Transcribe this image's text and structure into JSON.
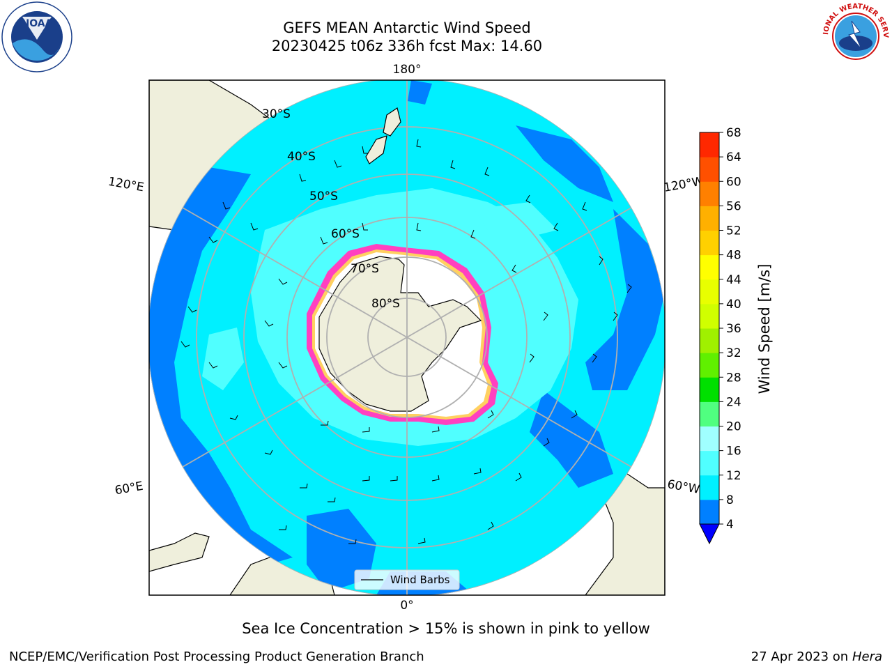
{
  "title_line1": "GEFS MEAN Antarctic Wind Speed",
  "title_line2": "20230425 t06z 336h fcst   Max: 14.60",
  "longitude_labels": {
    "top": "180°",
    "bottom": "0°",
    "upper_left": "120°E",
    "upper_right": "120°W",
    "lower_left": "60°E",
    "lower_right": "60°W"
  },
  "latitude_labels": [
    "30°S",
    "40°S",
    "50°S",
    "60°S",
    "70°S",
    "80°S"
  ],
  "legend_label": "Wind Barbs",
  "colorbar": {
    "label": "Wind Speed [m/s]",
    "ticks": [
      "68",
      "64",
      "60",
      "56",
      "52",
      "48",
      "44",
      "40",
      "36",
      "32",
      "28",
      "24",
      "20",
      "16",
      "12",
      "8",
      "4"
    ],
    "colors_bottom_to_top": [
      "#0080ff",
      "#00f0ff",
      "#50ffff",
      "#a0ffff",
      "#50ff80",
      "#00e000",
      "#60f000",
      "#a0f000",
      "#d0ff00",
      "#e8ff00",
      "#ffff00",
      "#ffd000",
      "#ffb000",
      "#ff8000",
      "#ff5000",
      "#ff2800",
      "#ff0000"
    ],
    "underflow_color": "#0000ff"
  },
  "note": "Sea Ice Concentration > 15% is shown in pink to yellow",
  "footer_left": "NCEP/EMC/Verification Post Processing Product Generation Branch",
  "footer_date": "27 Apr 2023 on ",
  "footer_host": "Hera",
  "logo_left_text": "NOAA",
  "logo_right_text": "NATIONAL WEATHER SERVICE",
  "colors": {
    "land": "#efefdc",
    "ocean_dark": "#0080ff",
    "ocean_mid": "#00f0ff",
    "ocean_light": "#50ffff",
    "sea_ice": "#ff40c0",
    "grid": "#b0b0b0"
  }
}
